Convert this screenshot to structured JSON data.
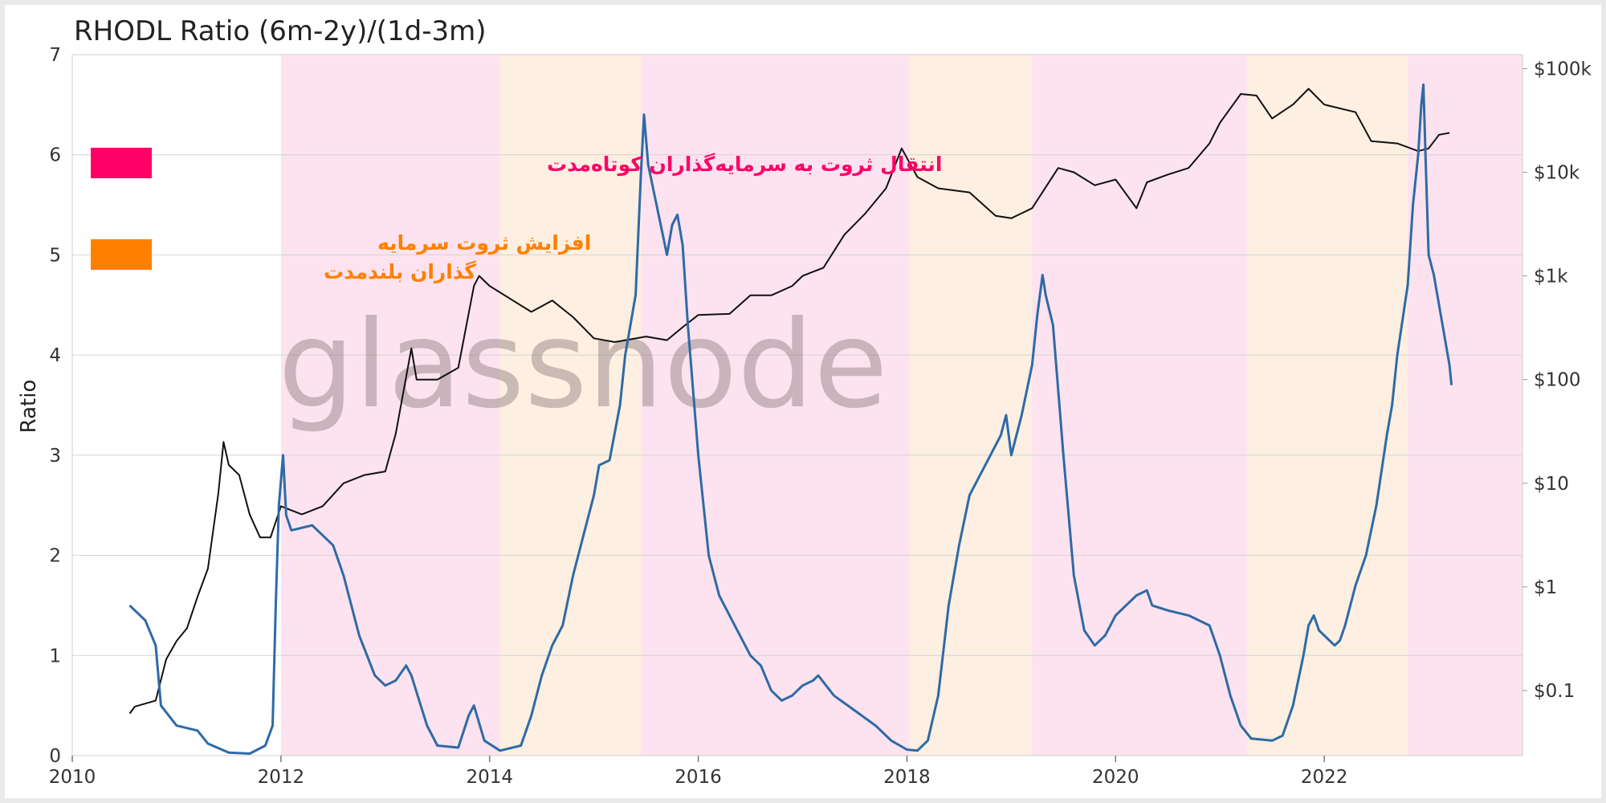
{
  "chart_data": {
    "type": "line",
    "title": "RHODL Ratio (6m-2y)/(1d-3m)",
    "ylabel": "Ratio",
    "ylabel_right": "",
    "xlim": [
      2010,
      2023.9
    ],
    "ylim": [
      0,
      7
    ],
    "y_ticks": [
      0,
      1,
      2,
      3,
      4,
      5,
      6,
      7
    ],
    "x_ticks": [
      2010,
      2012,
      2014,
      2016,
      2018,
      2020,
      2022
    ],
    "price_axis": {
      "scale": "log",
      "ticks": [
        {
          "value": 0.1,
          "label": "$0.1"
        },
        {
          "value": 1,
          "label": "$1"
        },
        {
          "value": 10,
          "label": "$10"
        },
        {
          "value": 100,
          "label": "$100"
        },
        {
          "value": 1000,
          "label": "$1k"
        },
        {
          "value": 10000,
          "label": "$10k"
        },
        {
          "value": 100000,
          "label": "$100k"
        }
      ]
    },
    "grid": true,
    "watermark": "glassnode",
    "legend": [
      {
        "label": "انتقال ثروت به سرمایه‌گذاران کوتاه‌مدت",
        "color": "#ff0066"
      },
      {
        "label_lines": [
          "افزایش ثروت سرمایه",
          "گذاران بلندمدت"
        ],
        "color": "#ff7f00"
      }
    ],
    "bands": [
      {
        "start": 2012.0,
        "end": 2014.1,
        "kind": "short_term",
        "color": "#fde3ef"
      },
      {
        "start": 2014.1,
        "end": 2015.45,
        "kind": "long_term",
        "color": "#fdefe1"
      },
      {
        "start": 2015.45,
        "end": 2018.02,
        "kind": "short_term",
        "color": "#fde3ef"
      },
      {
        "start": 2018.02,
        "end": 2019.2,
        "kind": "long_term",
        "color": "#fdefe1"
      },
      {
        "start": 2019.2,
        "end": 2021.26,
        "kind": "short_term",
        "color": "#fde3ef"
      },
      {
        "start": 2021.26,
        "end": 2022.8,
        "kind": "long_term",
        "color": "#fdefe1"
      },
      {
        "start": 2022.8,
        "end": 2023.9,
        "kind": "short_term",
        "color": "#fde3ef"
      }
    ],
    "series": [
      {
        "name": "",
        "axis": "left",
        "color": "#2e6aa6",
        "points": [
          [
            2010.55,
            1.5
          ],
          [
            2010.7,
            1.35
          ],
          [
            2010.8,
            1.1
          ],
          [
            2010.85,
            0.5
          ],
          [
            2011.0,
            0.3
          ],
          [
            2011.2,
            0.25
          ],
          [
            2011.3,
            0.12
          ],
          [
            2011.5,
            0.03
          ],
          [
            2011.7,
            0.02
          ],
          [
            2011.85,
            0.1
          ],
          [
            2011.92,
            0.3
          ],
          [
            2011.95,
            1.5
          ],
          [
            2011.98,
            2.5
          ],
          [
            2012.02,
            3.0
          ],
          [
            2012.05,
            2.4
          ],
          [
            2012.1,
            2.25
          ],
          [
            2012.3,
            2.3
          ],
          [
            2012.5,
            2.1
          ],
          [
            2012.6,
            1.8
          ],
          [
            2012.75,
            1.2
          ],
          [
            2012.9,
            0.8
          ],
          [
            2013.0,
            0.7
          ],
          [
            2013.1,
            0.75
          ],
          [
            2013.2,
            0.9
          ],
          [
            2013.25,
            0.8
          ],
          [
            2013.4,
            0.3
          ],
          [
            2013.5,
            0.1
          ],
          [
            2013.7,
            0.08
          ],
          [
            2013.8,
            0.4
          ],
          [
            2013.85,
            0.5
          ],
          [
            2013.95,
            0.15
          ],
          [
            2014.1,
            0.05
          ],
          [
            2014.3,
            0.1
          ],
          [
            2014.4,
            0.4
          ],
          [
            2014.5,
            0.8
          ],
          [
            2014.6,
            1.1
          ],
          [
            2014.7,
            1.3
          ],
          [
            2014.8,
            1.8
          ],
          [
            2014.9,
            2.2
          ],
          [
            2015.0,
            2.6
          ],
          [
            2015.05,
            2.9
          ],
          [
            2015.15,
            2.95
          ],
          [
            2015.25,
            3.5
          ],
          [
            2015.3,
            4.0
          ],
          [
            2015.4,
            4.6
          ],
          [
            2015.45,
            5.8
          ],
          [
            2015.48,
            6.4
          ],
          [
            2015.52,
            5.9
          ],
          [
            2015.6,
            5.5
          ],
          [
            2015.7,
            5.0
          ],
          [
            2015.75,
            5.3
          ],
          [
            2015.8,
            5.4
          ],
          [
            2015.85,
            5.1
          ],
          [
            2015.9,
            4.3
          ],
          [
            2016.0,
            3.0
          ],
          [
            2016.1,
            2.0
          ],
          [
            2016.2,
            1.6
          ],
          [
            2016.35,
            1.3
          ],
          [
            2016.5,
            1.0
          ],
          [
            2016.6,
            0.9
          ],
          [
            2016.7,
            0.65
          ],
          [
            2016.8,
            0.55
          ],
          [
            2016.9,
            0.6
          ],
          [
            2017.0,
            0.7
          ],
          [
            2017.1,
            0.75
          ],
          [
            2017.15,
            0.8
          ],
          [
            2017.3,
            0.6
          ],
          [
            2017.5,
            0.45
          ],
          [
            2017.7,
            0.3
          ],
          [
            2017.85,
            0.15
          ],
          [
            2018.0,
            0.06
          ],
          [
            2018.1,
            0.05
          ],
          [
            2018.2,
            0.15
          ],
          [
            2018.3,
            0.6
          ],
          [
            2018.4,
            1.5
          ],
          [
            2018.5,
            2.1
          ],
          [
            2018.6,
            2.6
          ],
          [
            2018.7,
            2.8
          ],
          [
            2018.8,
            3.0
          ],
          [
            2018.9,
            3.2
          ],
          [
            2018.95,
            3.4
          ],
          [
            2019.0,
            3.0
          ],
          [
            2019.1,
            3.4
          ],
          [
            2019.2,
            3.9
          ],
          [
            2019.25,
            4.4
          ],
          [
            2019.3,
            4.8
          ],
          [
            2019.33,
            4.6
          ],
          [
            2019.4,
            4.3
          ],
          [
            2019.5,
            3.0
          ],
          [
            2019.6,
            1.8
          ],
          [
            2019.7,
            1.25
          ],
          [
            2019.8,
            1.1
          ],
          [
            2019.9,
            1.2
          ],
          [
            2020.0,
            1.4
          ],
          [
            2020.1,
            1.5
          ],
          [
            2020.2,
            1.6
          ],
          [
            2020.3,
            1.65
          ],
          [
            2020.35,
            1.5
          ],
          [
            2020.5,
            1.45
          ],
          [
            2020.7,
            1.4
          ],
          [
            2020.8,
            1.35
          ],
          [
            2020.9,
            1.3
          ],
          [
            2021.0,
            1.0
          ],
          [
            2021.1,
            0.6
          ],
          [
            2021.2,
            0.3
          ],
          [
            2021.3,
            0.17
          ],
          [
            2021.5,
            0.15
          ],
          [
            2021.6,
            0.2
          ],
          [
            2021.7,
            0.5
          ],
          [
            2021.8,
            1.0
          ],
          [
            2021.85,
            1.3
          ],
          [
            2021.9,
            1.4
          ],
          [
            2021.95,
            1.25
          ],
          [
            2022.05,
            1.15
          ],
          [
            2022.1,
            1.1
          ],
          [
            2022.15,
            1.15
          ],
          [
            2022.2,
            1.3
          ],
          [
            2022.3,
            1.7
          ],
          [
            2022.4,
            2.0
          ],
          [
            2022.5,
            2.5
          ],
          [
            2022.6,
            3.2
          ],
          [
            2022.65,
            3.5
          ],
          [
            2022.7,
            4.0
          ],
          [
            2022.8,
            4.7
          ],
          [
            2022.85,
            5.5
          ],
          [
            2022.9,
            6.0
          ],
          [
            2022.93,
            6.5
          ],
          [
            2022.95,
            6.7
          ],
          [
            2022.97,
            6.0
          ],
          [
            2023.0,
            5.0
          ],
          [
            2023.05,
            4.8
          ],
          [
            2023.1,
            4.5
          ],
          [
            2023.15,
            4.2
          ],
          [
            2023.2,
            3.9
          ],
          [
            2023.22,
            3.7
          ]
        ]
      },
      {
        "name": "",
        "axis": "right",
        "color": "#111111",
        "points": [
          [
            2010.55,
            0.06
          ],
          [
            2010.6,
            0.07
          ],
          [
            2010.8,
            0.08
          ],
          [
            2010.9,
            0.2
          ],
          [
            2011.0,
            0.3
          ],
          [
            2011.1,
            0.4
          ],
          [
            2011.2,
            0.8
          ],
          [
            2011.3,
            1.5
          ],
          [
            2011.4,
            8.0
          ],
          [
            2011.45,
            25.0
          ],
          [
            2011.5,
            15.0
          ],
          [
            2011.6,
            12.0
          ],
          [
            2011.7,
            5.0
          ],
          [
            2011.8,
            3.0
          ],
          [
            2011.9,
            3.0
          ],
          [
            2012.0,
            6.0
          ],
          [
            2012.2,
            5.0
          ],
          [
            2012.4,
            6.0
          ],
          [
            2012.6,
            10.0
          ],
          [
            2012.8,
            12.0
          ],
          [
            2013.0,
            13.0
          ],
          [
            2013.1,
            30.0
          ],
          [
            2013.25,
            200.0
          ],
          [
            2013.3,
            100.0
          ],
          [
            2013.5,
            100.0
          ],
          [
            2013.7,
            130.0
          ],
          [
            2013.85,
            800.0
          ],
          [
            2013.9,
            1000.0
          ],
          [
            2014.0,
            800.0
          ],
          [
            2014.2,
            600.0
          ],
          [
            2014.4,
            450.0
          ],
          [
            2014.6,
            580.0
          ],
          [
            2014.8,
            400.0
          ],
          [
            2015.0,
            250.0
          ],
          [
            2015.2,
            230.0
          ],
          [
            2015.5,
            260.0
          ],
          [
            2015.7,
            240.0
          ],
          [
            2015.85,
            320.0
          ],
          [
            2016.0,
            420.0
          ],
          [
            2016.3,
            430.0
          ],
          [
            2016.5,
            650.0
          ],
          [
            2016.7,
            650.0
          ],
          [
            2016.9,
            800.0
          ],
          [
            2017.0,
            1000.0
          ],
          [
            2017.2,
            1200.0
          ],
          [
            2017.4,
            2500.0
          ],
          [
            2017.6,
            4000.0
          ],
          [
            2017.8,
            7000.0
          ],
          [
            2017.95,
            17000.0
          ],
          [
            2018.1,
            9000.0
          ],
          [
            2018.3,
            7000.0
          ],
          [
            2018.6,
            6400.0
          ],
          [
            2018.85,
            3800.0
          ],
          [
            2019.0,
            3600.0
          ],
          [
            2019.2,
            4500.0
          ],
          [
            2019.45,
            11000.0
          ],
          [
            2019.6,
            10000.0
          ],
          [
            2019.8,
            7500.0
          ],
          [
            2020.0,
            8500.0
          ],
          [
            2020.2,
            4500.0
          ],
          [
            2020.3,
            8000.0
          ],
          [
            2020.5,
            9500.0
          ],
          [
            2020.7,
            11000.0
          ],
          [
            2020.9,
            19000.0
          ],
          [
            2021.0,
            30000.0
          ],
          [
            2021.2,
            57000.0
          ],
          [
            2021.35,
            55000.0
          ],
          [
            2021.5,
            33000.0
          ],
          [
            2021.7,
            45000.0
          ],
          [
            2021.85,
            64000.0
          ],
          [
            2022.0,
            45000.0
          ],
          [
            2022.3,
            38000.0
          ],
          [
            2022.45,
            20000.0
          ],
          [
            2022.7,
            19000.0
          ],
          [
            2022.9,
            16000.0
          ],
          [
            2023.0,
            17000.0
          ],
          [
            2023.1,
            23000.0
          ],
          [
            2023.2,
            24000.0
          ]
        ]
      }
    ]
  }
}
